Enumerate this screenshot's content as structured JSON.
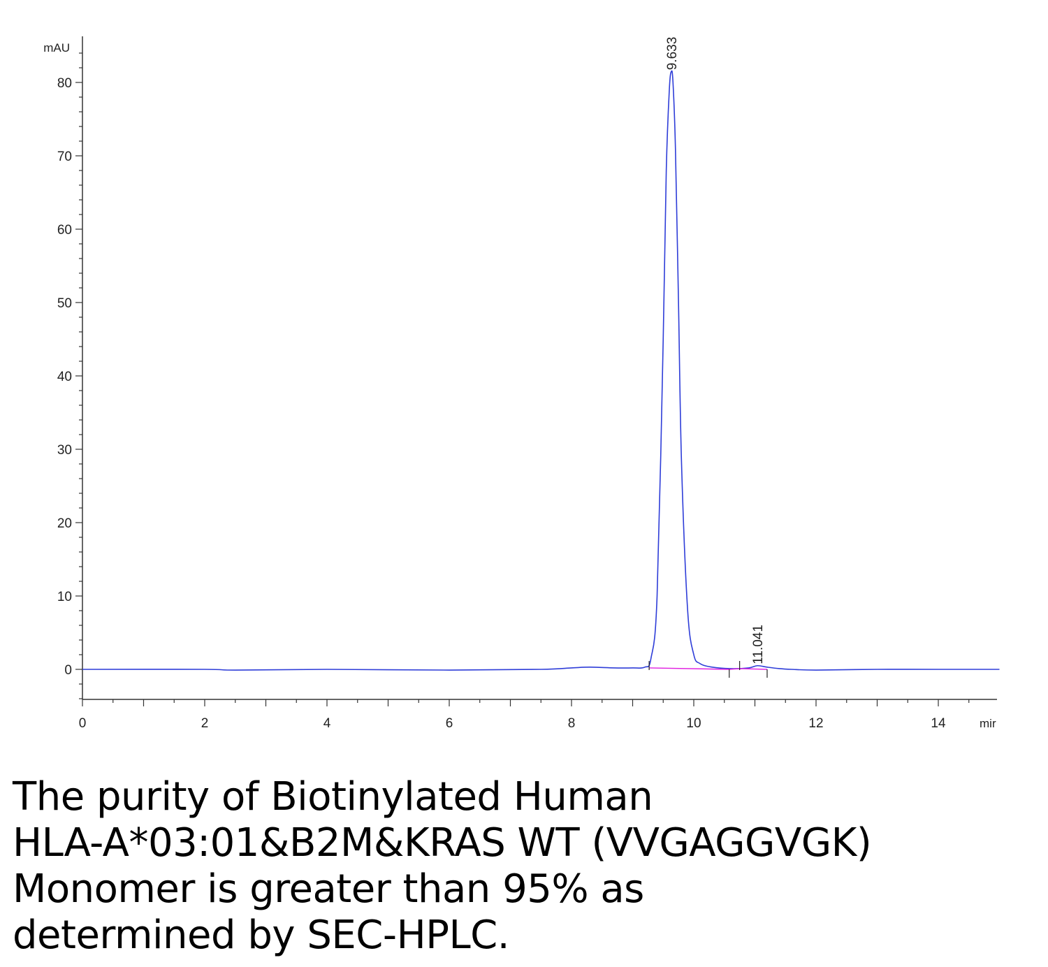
{
  "chart_data": {
    "type": "line",
    "y_unit_label": "mAU",
    "x_unit_label": "mir",
    "xlim": [
      0,
      15
    ],
    "ylim": [
      -4,
      85
    ],
    "x_ticks": [
      "0",
      "2",
      "4",
      "6",
      "8",
      "10",
      "12",
      "14"
    ],
    "y_ticks": [
      "0",
      "10",
      "20",
      "30",
      "40",
      "50",
      "60",
      "70",
      "80"
    ],
    "grid": false,
    "colors": {
      "signal": "#2e3dd8",
      "baseline": "#e020e0",
      "axis": "#333333"
    },
    "series": [
      {
        "x": [
          0,
          2,
          2.5,
          4,
          6,
          7.5,
          8,
          8.3,
          8.7,
          9.0,
          9.2,
          9.3,
          9.4,
          9.5,
          9.55,
          9.6,
          9.633,
          9.66,
          9.7,
          9.75,
          9.8,
          9.9,
          10.0,
          10.1,
          10.3,
          10.6,
          10.9,
          11.041,
          11.2,
          11.4,
          11.6,
          12,
          13,
          14,
          15
        ],
        "y": [
          0,
          0,
          -0.1,
          0,
          -0.1,
          0,
          0.2,
          0.3,
          0.2,
          0.2,
          0.3,
          1.5,
          10,
          45,
          68,
          79,
          81.5,
          80,
          71,
          50,
          28,
          8,
          2,
          0.8,
          0.3,
          0.1,
          0.2,
          0.5,
          0.3,
          0.1,
          0,
          -0.1,
          0,
          0,
          0
        ]
      }
    ],
    "peaks": [
      {
        "label": "9.633",
        "x": 9.633,
        "y": 81.5
      },
      {
        "label": "11.041",
        "x": 11.041,
        "y": 0.5
      }
    ],
    "integration_baseline": [
      [
        9.27,
        0.2
      ],
      [
        10.58,
        0.0
      ],
      [
        10.75,
        0.1
      ],
      [
        11.2,
        0.0
      ]
    ],
    "integration_markers": [
      9.27,
      10.58,
      10.75,
      11.2
    ]
  },
  "caption": {
    "line1": "The purity of Biotinylated Human",
    "line2": "HLA-A*03:01&B2M&KRAS WT (VVGAGGVGK)",
    "line3": "Monomer is greater than 95% as",
    "line4": "determined by SEC-HPLC."
  }
}
